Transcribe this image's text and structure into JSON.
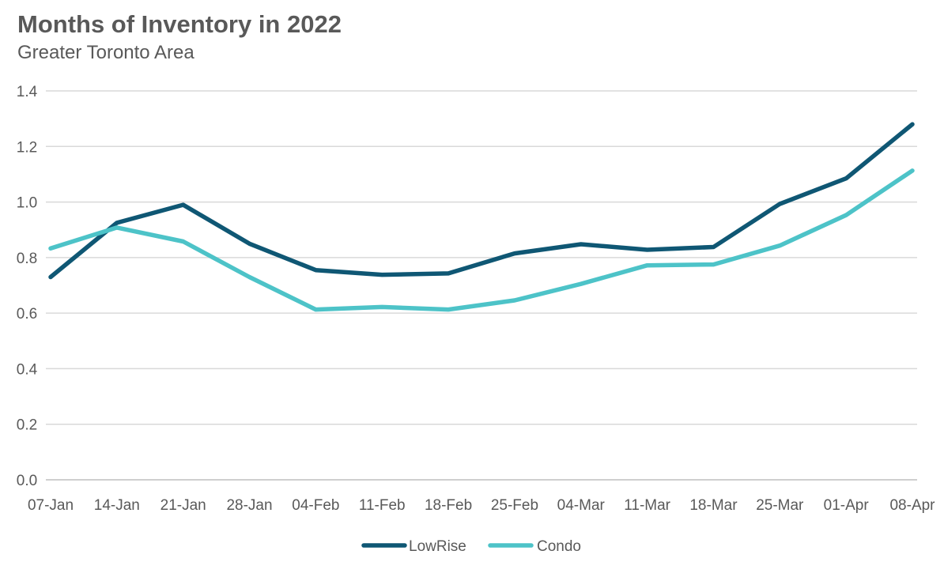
{
  "chart_data": {
    "type": "line",
    "title": "Months of Inventory in 2022",
    "subtitle": "Greater Toronto Area",
    "xlabel": "",
    "ylabel": "",
    "categories": [
      "07-Jan",
      "14-Jan",
      "21-Jan",
      "28-Jan",
      "04-Feb",
      "11-Feb",
      "18-Feb",
      "25-Feb",
      "04-Mar",
      "11-Mar",
      "18-Mar",
      "25-Mar",
      "01-Apr",
      "08-Apr"
    ],
    "ylim": [
      0,
      1.4
    ],
    "yticks": [
      "0.0",
      "0.2",
      "0.4",
      "0.6",
      "0.8",
      "1.0",
      "1.2",
      "1.4"
    ],
    "grid": true,
    "legend_position": "bottom",
    "series": [
      {
        "name": "LowRise",
        "color": "#0F5774",
        "values": [
          0.73,
          0.925,
          0.99,
          0.85,
          0.755,
          0.738,
          0.743,
          0.815,
          0.848,
          0.828,
          0.838,
          0.993,
          1.085,
          1.28
        ]
      },
      {
        "name": "Condo",
        "color": "#4DC3C8",
        "values": [
          0.833,
          0.908,
          0.858,
          0.73,
          0.613,
          0.622,
          0.613,
          0.646,
          0.705,
          0.772,
          0.775,
          0.843,
          0.953,
          1.113
        ]
      }
    ]
  }
}
